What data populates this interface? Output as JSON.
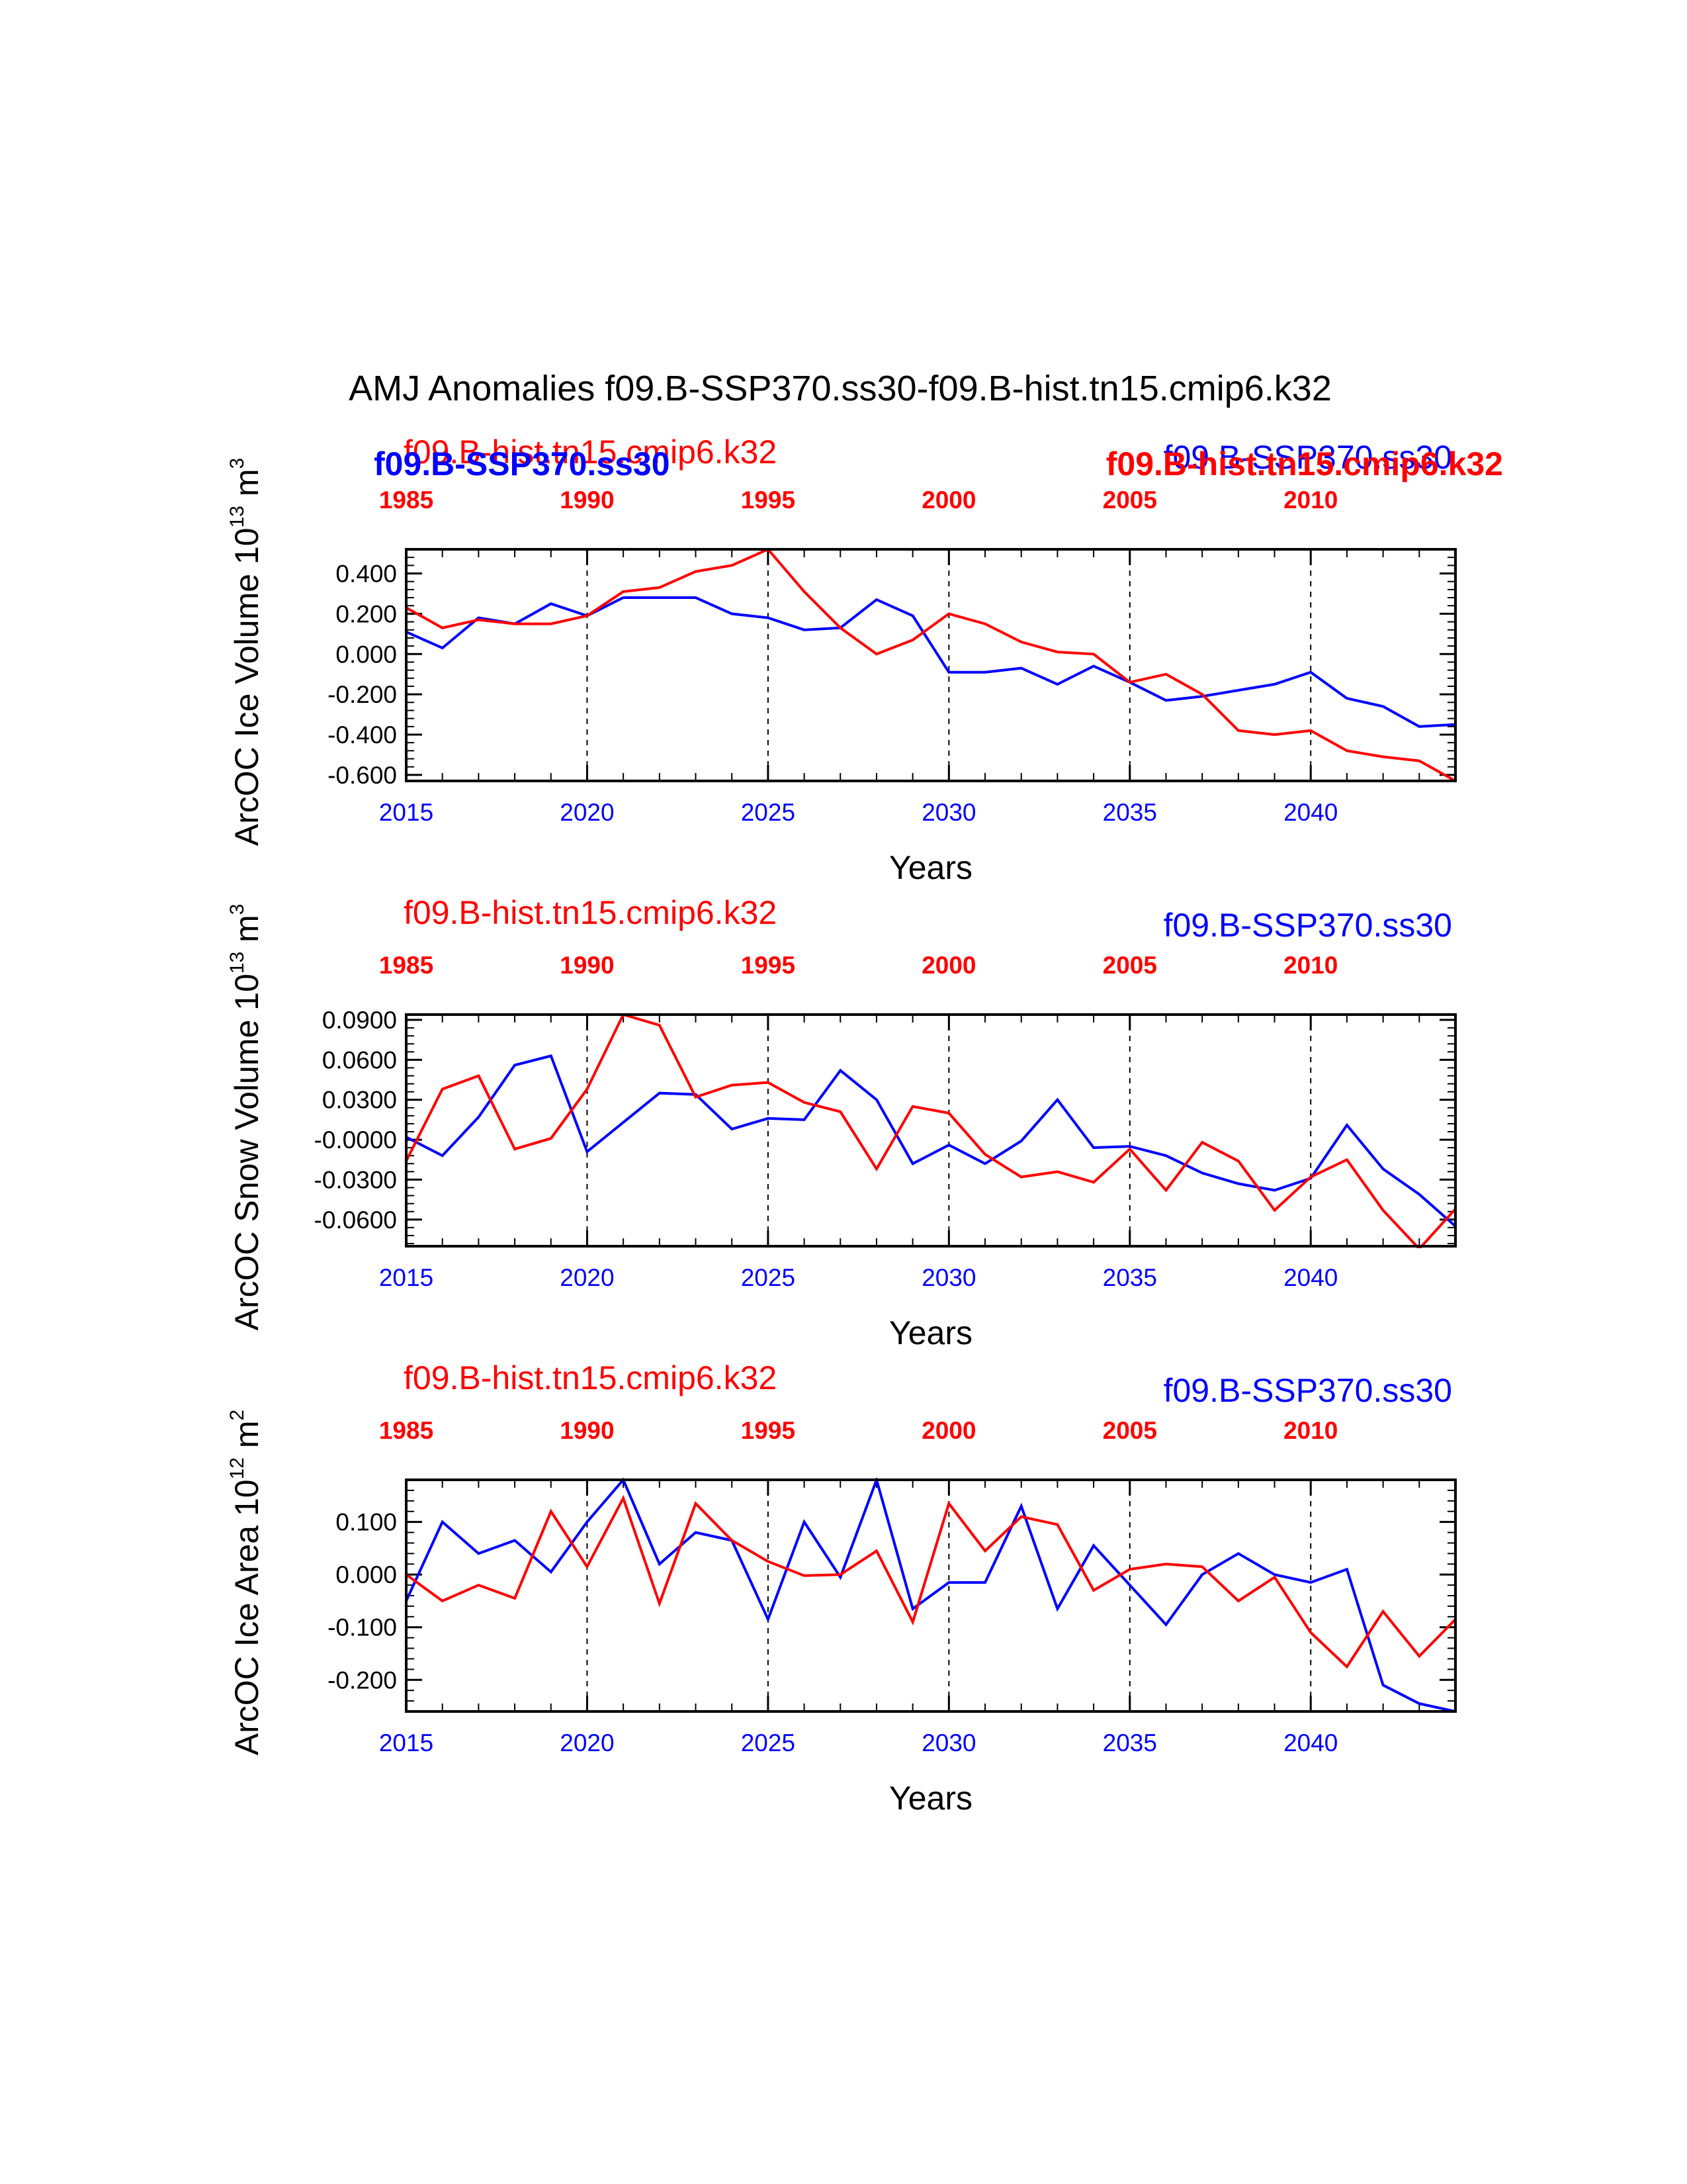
{
  "chart_data": {
    "type": "line",
    "title": "AMJ Anomalies f09.B-SSP370.ss30-f09.B-hist.tn15.cmip6.k32",
    "colors": {
      "ssp": "#0000ff",
      "hist": "#ff0000",
      "axis": "#000000"
    },
    "x_bottom": {
      "label": "Years",
      "ticks": [
        2015,
        2020,
        2025,
        2030,
        2035,
        2040
      ],
      "range": [
        2015,
        2044
      ]
    },
    "x_top": {
      "ticks": [
        1985,
        1990,
        1995,
        2000,
        2005,
        2010
      ],
      "range": [
        1985,
        2014
      ]
    },
    "vertical_dashed_lines_at": [
      2020,
      2025,
      2030,
      2035,
      2040
    ],
    "panels": [
      {
        "id": "ice-volume",
        "ylabel_main": "ArcOC Ice Volume 10",
        "ylabel_exp": "13",
        "ylabel_unit": " m",
        "ylabel_unit_exp": "3",
        "ylim": [
          -0.63,
          0.52
        ],
        "yticks": [
          -0.6,
          -0.4,
          -0.2,
          0.0,
          0.2,
          0.4
        ],
        "ytick_labels": [
          "-0.600",
          "-0.400",
          "-0.200",
          "0.000",
          "0.200",
          "0.400"
        ],
        "legend_labels": [
          {
            "text": "f09.B-hist.tn15.cmip6.k32",
            "color": "hist",
            "position": "top-left",
            "style": "normal"
          },
          {
            "text": "f09.B-SSP370.ss30",
            "color": "ssp",
            "position": "top-left",
            "style": "bold"
          },
          {
            "text": "f09.B-SSP370.ss30",
            "color": "ssp",
            "position": "top-right",
            "style": "normal"
          },
          {
            "text": "f09.B-hist.tn15.cmip6.k32",
            "color": "hist",
            "position": "top-right",
            "style": "bold"
          }
        ],
        "series": [
          {
            "name": "f09.B-SSP370.ss30",
            "color": "ssp",
            "values": [
              0.11,
              0.03,
              0.18,
              0.15,
              0.25,
              0.19,
              0.28,
              0.28,
              0.28,
              0.2,
              0.18,
              0.12,
              0.13,
              0.27,
              0.19,
              -0.09,
              -0.09,
              -0.07,
              -0.15,
              -0.06,
              -0.14,
              -0.23,
              -0.21,
              -0.18,
              -0.15,
              -0.09,
              -0.22,
              -0.26,
              -0.36,
              -0.35
            ]
          },
          {
            "name": "f09.B-hist.tn15.cmip6.k32",
            "color": "hist",
            "values": [
              0.23,
              0.13,
              0.17,
              0.15,
              0.15,
              0.19,
              0.31,
              0.33,
              0.41,
              0.44,
              0.52,
              0.31,
              0.13,
              0.0,
              0.07,
              0.2,
              0.15,
              0.06,
              0.01,
              0.0,
              -0.14,
              -0.1,
              -0.2,
              -0.38,
              -0.4,
              -0.38,
              -0.48,
              -0.51,
              -0.53,
              -0.63
            ]
          }
        ]
      },
      {
        "id": "snow-volume",
        "ylabel_main": "ArcOC Snow Volume 10",
        "ylabel_exp": "13",
        "ylabel_unit": " m",
        "ylabel_unit_exp": "3",
        "ylim": [
          -0.08,
          0.094
        ],
        "yticks": [
          -0.06,
          -0.03,
          0.0,
          0.03,
          0.06,
          0.09
        ],
        "ytick_labels": [
          "-0.0600",
          "-0.0300",
          "-0.0000",
          "0.0300",
          "0.0600",
          "0.0900"
        ],
        "legend_labels": [
          {
            "text": "f09.B-hist.tn15.cmip6.k32",
            "color": "hist",
            "position": "top-left",
            "style": "normal"
          },
          {
            "text": "f09.B-SSP370.ss30",
            "color": "ssp",
            "position": "top-right",
            "style": "normal"
          }
        ],
        "series": [
          {
            "name": "f09.B-SSP370.ss30",
            "color": "ssp",
            "values": [
              0.002,
              -0.012,
              0.017,
              0.056,
              0.063,
              -0.009,
              0.013,
              0.035,
              0.034,
              0.008,
              0.016,
              0.015,
              0.052,
              0.03,
              -0.018,
              -0.004,
              -0.018,
              -0.001,
              0.03,
              -0.006,
              -0.005,
              -0.012,
              -0.025,
              -0.033,
              -0.038,
              -0.029,
              0.011,
              -0.022,
              -0.041,
              -0.065
            ]
          },
          {
            "name": "f09.B-hist.tn15.cmip6.k32",
            "color": "hist",
            "values": [
              -0.016,
              0.038,
              0.048,
              -0.007,
              0.001,
              0.038,
              0.094,
              0.086,
              0.032,
              0.041,
              0.043,
              0.028,
              0.021,
              -0.022,
              0.025,
              0.02,
              -0.011,
              -0.028,
              -0.024,
              -0.032,
              -0.007,
              -0.038,
              -0.002,
              -0.016,
              -0.053,
              -0.028,
              -0.015,
              -0.053,
              -0.082,
              -0.052
            ]
          }
        ]
      },
      {
        "id": "ice-area",
        "ylabel_main": "ArcOC Ice Area 10",
        "ylabel_exp": "12",
        "ylabel_unit": " m",
        "ylabel_unit_exp": "2",
        "ylim": [
          -0.26,
          0.18
        ],
        "yticks": [
          -0.2,
          -0.1,
          0.0,
          0.1
        ],
        "ytick_labels": [
          "-0.200",
          "-0.100",
          "0.000",
          "0.100"
        ],
        "legend_labels": [
          {
            "text": "f09.B-hist.tn15.cmip6.k32",
            "color": "hist",
            "position": "top-left",
            "style": "normal"
          },
          {
            "text": "f09.B-SSP370.ss30",
            "color": "ssp",
            "position": "top-right",
            "style": "normal"
          }
        ],
        "series": [
          {
            "name": "f09.B-SSP370.ss30",
            "color": "ssp",
            "values": [
              -0.05,
              0.1,
              0.04,
              0.065,
              0.005,
              0.1,
              0.18,
              0.02,
              0.08,
              0.065,
              -0.085,
              0.1,
              -0.005,
              0.18,
              -0.065,
              -0.015,
              -0.015,
              0.13,
              -0.065,
              0.055,
              -0.02,
              -0.095,
              0.0,
              0.04,
              0.0,
              -0.015,
              0.01,
              -0.21,
              -0.245,
              -0.26
            ]
          },
          {
            "name": "f09.B-hist.tn15.cmip6.k32",
            "color": "hist",
            "values": [
              0.0,
              -0.05,
              -0.02,
              -0.045,
              0.12,
              0.015,
              0.145,
              -0.055,
              0.135,
              0.065,
              0.025,
              -0.002,
              0.0,
              0.045,
              -0.09,
              0.135,
              0.045,
              0.11,
              0.095,
              -0.03,
              0.01,
              0.02,
              0.015,
              -0.05,
              -0.005,
              -0.11,
              -0.175,
              -0.07,
              -0.155,
              -0.085
            ]
          }
        ]
      }
    ]
  }
}
